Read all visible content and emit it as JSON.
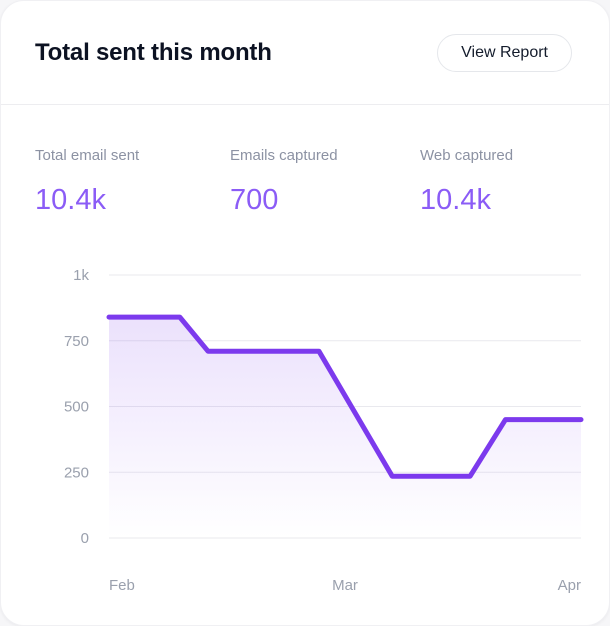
{
  "header": {
    "title": "Total sent this month",
    "view_report_label": "View Report"
  },
  "stats": [
    {
      "label": "Total email sent",
      "value": "10.4k"
    },
    {
      "label": "Emails captured",
      "value": "700"
    },
    {
      "label": "Web captured",
      "value": "10.4k"
    }
  ],
  "colors": {
    "accent_value": "#8b5cf6",
    "line": "#7c3aed",
    "area_top": "rgba(124,58,237,0.18)",
    "area_bottom": "rgba(124,58,237,0)",
    "grid": "#e9e9ee",
    "axis_text": "#9aa0ad",
    "label_text": "#8c92a3",
    "title_text": "#0c1222"
  },
  "chart_data": {
    "type": "area",
    "title": "Total sent this month trend",
    "xlabel": "",
    "ylabel": "",
    "xlim": [
      0,
      2
    ],
    "ylim": [
      0,
      1000
    ],
    "grid": "horizontal",
    "legend": "none",
    "x_ticks": [
      "Feb",
      "Mar",
      "Apr"
    ],
    "y_ticks": [
      {
        "value": 1000,
        "label": "1k"
      },
      {
        "value": 750,
        "label": "750"
      },
      {
        "value": 500,
        "label": "500"
      },
      {
        "value": 250,
        "label": "250"
      },
      {
        "value": 0,
        "label": "0"
      }
    ],
    "points": [
      {
        "x": 0.0,
        "y": 840
      },
      {
        "x": 0.3,
        "y": 840
      },
      {
        "x": 0.42,
        "y": 710
      },
      {
        "x": 0.89,
        "y": 710
      },
      {
        "x": 1.2,
        "y": 235
      },
      {
        "x": 1.53,
        "y": 235
      },
      {
        "x": 1.68,
        "y": 450
      },
      {
        "x": 2.0,
        "y": 450
      }
    ]
  }
}
